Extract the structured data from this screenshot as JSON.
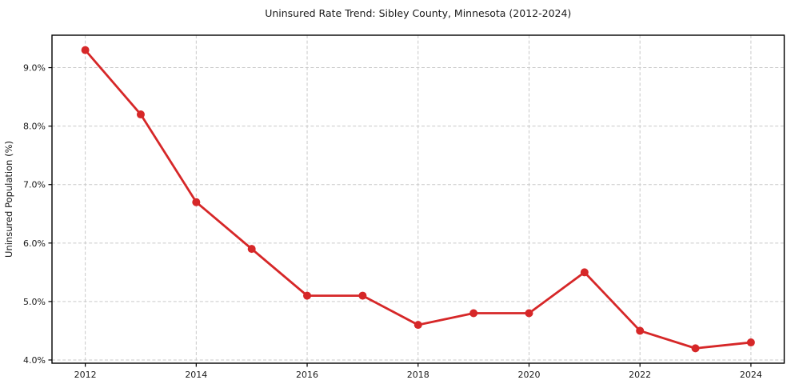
{
  "window": {
    "background_color": "#ffffff"
  },
  "chart_data": {
    "type": "line",
    "title": "Uninsured Rate Trend: Sibley County, Minnesota (2012-2024)",
    "xlabel": "",
    "ylabel": "Uninsured Population (%)",
    "series": [
      {
        "name": "Uninsured Rate",
        "x": [
          2012,
          2013,
          2014,
          2015,
          2016,
          2017,
          2018,
          2019,
          2020,
          2021,
          2022,
          2023,
          2024
        ],
        "values": [
          9.3,
          8.2,
          6.7,
          5.9,
          5.1,
          5.1,
          4.6,
          4.8,
          4.8,
          5.5,
          4.5,
          4.2,
          4.3
        ]
      }
    ],
    "xlim": [
      2011.4,
      2024.6
    ],
    "ylim": [
      3.945,
      9.555
    ],
    "xticks": [
      2012,
      2014,
      2016,
      2018,
      2020,
      2022,
      2024
    ],
    "xtick_labels": [
      "2012",
      "2014",
      "2016",
      "2018",
      "2020",
      "2022",
      "2024"
    ],
    "yticks": [
      4.0,
      5.0,
      6.0,
      7.0,
      8.0,
      9.0
    ],
    "ytick_labels": [
      "4.0%",
      "5.0%",
      "6.0%",
      "7.0%",
      "8.0%",
      "9.0%"
    ],
    "grid": true,
    "grid_style": "dashed",
    "legend": false,
    "colors": {
      "line": "#d62728",
      "marker": "#d62728",
      "grid": "#c9c9c9",
      "spine": "#000000",
      "text": "#1a1a1a",
      "background": "#ffffff"
    },
    "line_width": 2.8,
    "marker": "circle",
    "marker_radius": 5
  }
}
